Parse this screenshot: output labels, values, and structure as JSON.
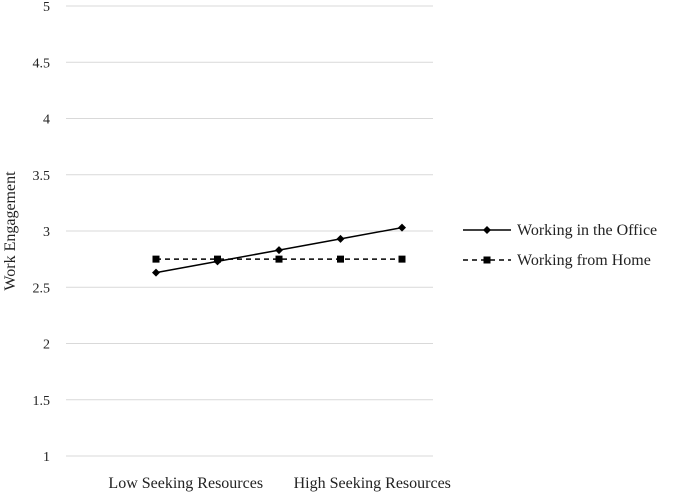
{
  "chart_data": {
    "type": "line",
    "title": "",
    "xlabel": "",
    "ylabel": "Work Engagement",
    "ylim": [
      1,
      5
    ],
    "ytick_step": 0.5,
    "y_ticks": [
      "1",
      "1.5",
      "2",
      "2.5",
      "3",
      "3.5",
      "4",
      "4.5",
      "5"
    ],
    "x_tick_labels": [
      "Low Seeking Resources",
      "High Seeking Resources"
    ],
    "x_points": 5,
    "grid": true,
    "legend": "right",
    "series": [
      {
        "name": "Working in the Office",
        "values": [
          2.63,
          2.73,
          2.83,
          2.93,
          3.03
        ],
        "line_style": "solid",
        "marker": "diamond",
        "color": "#000000"
      },
      {
        "name": "Working from Home",
        "values": [
          2.75,
          2.75,
          2.75,
          2.75,
          2.75
        ],
        "line_style": "dashed",
        "marker": "square",
        "color": "#000000"
      }
    ],
    "colors": {
      "grid": "#d9d9d9",
      "text": "#222222"
    }
  }
}
